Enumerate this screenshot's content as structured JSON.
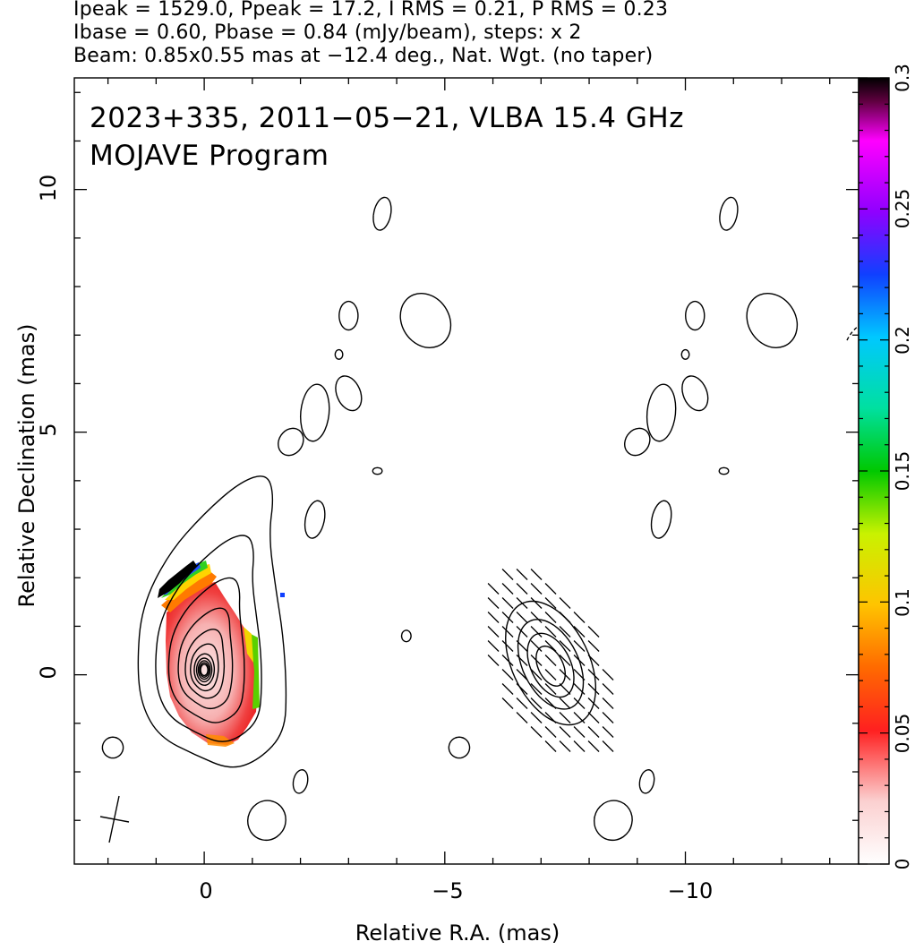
{
  "header": {
    "line1": "Ipeak = 1529.0, Ppeak = 17.2, I RMS = 0.21, P RMS = 0.23",
    "line2": "Ibase = 0.60, Pbase = 0.84 (mJy/beam), steps: x 2",
    "line3": "Beam: 0.85x0.55 mas at −12.4 deg., Nat. Wgt. (no taper)"
  },
  "colors": {
    "axis": "#000000",
    "background": "#ffffff"
  },
  "chart_data": {
    "type": "heatmap",
    "title": "2023+335, 2011−05−21, VLBA 15.4 GHz",
    "subtitle": "MOJAVE Program",
    "xlabel": "Relative R.A. (mas)",
    "ylabel": "Relative Declination (mas)",
    "xlim": [
      2.7,
      -13.6
    ],
    "ylim": [
      -3.9,
      12.3
    ],
    "x_ticks": [
      0,
      -5,
      -10
    ],
    "x_tick_labels": [
      "0",
      "−5",
      "−10"
    ],
    "y_ticks": [
      0,
      5,
      10
    ],
    "y_tick_labels": [
      "0",
      "5",
      "10"
    ],
    "colorbar": {
      "range": [
        0,
        0.3
      ],
      "ticks": [
        0,
        0.05,
        0.1,
        0.15,
        0.2,
        0.25,
        0.3
      ],
      "tick_labels": [
        "0",
        "0.05",
        "0.1",
        "0.15",
        "0.2",
        "0.25",
        "0.3"
      ]
    },
    "beam": {
      "major_mas": 0.85,
      "minor_mas": 0.55,
      "pa_deg": -12.4,
      "center": [
        1.9,
        -3.1
      ]
    },
    "panels": [
      {
        "name": "left",
        "offset": [
          0,
          0
        ],
        "peak": [
          0.0,
          0.1
        ],
        "contour_levels": 11,
        "quantity": "fractional polarization"
      },
      {
        "name": "right",
        "offset": [
          -7.2,
          0
        ],
        "peak": [
          -7.2,
          0.15
        ],
        "contour_levels": 5,
        "quantity": "EVPA ticks"
      }
    ]
  }
}
